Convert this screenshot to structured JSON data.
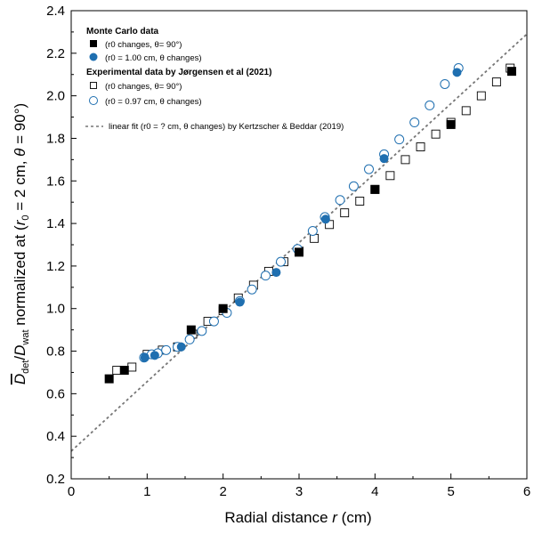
{
  "chart_data": {
    "type": "scatter",
    "xlabel_main": "Radial distance ",
    "xlabel_var": "r",
    "xlabel_unit": " (cm)",
    "ylabel_parts": {
      "d": "D",
      "det": "det",
      "slash": "/",
      "d2": "D",
      "wat": "wat",
      "text1": " normalized at (",
      "r": "r",
      "zero": "0",
      "text2": " = 2 cm, ",
      "theta": "θ",
      "text3": " = 90°)"
    },
    "xlim": [
      0,
      6
    ],
    "ylim": [
      0.2,
      2.4
    ],
    "x_ticks": [
      "0",
      "1",
      "2",
      "3",
      "4",
      "5",
      "6"
    ],
    "y_ticks": [
      "0.2",
      "0.4",
      "0.6",
      "0.8",
      "1.0",
      "1.2",
      "1.4",
      "1.6",
      "1.8",
      "2.0",
      "2.2",
      "2.4"
    ],
    "legend_position": "top-left",
    "legend": {
      "mc_header": "Monte Carlo data",
      "mc_series1": "(r0 changes, θ= 90°)",
      "mc_series2": "(r0 = 1.00 cm, θ changes)",
      "exp_header": "Experimental data by Jørgensen et al (2021)",
      "exp_series1": "(r0 changes, θ= 90°)",
      "exp_series2": "(r0 = 0.97 cm, θ changes)",
      "fit_label": "linear fit (r0 = ? cm, θ changes) by Kertzscher & Beddar (2019)"
    },
    "colors": {
      "black": "#000000",
      "blue": "#1f6fb0",
      "fit_line": "#777777"
    },
    "series": [
      {
        "name": "Monte Carlo (r0 changes, θ=90°)",
        "marker": "filled-square",
        "x": [
          0.5,
          0.7,
          1.58,
          2.0,
          3.0,
          4.0,
          5.0,
          5.8
        ],
        "y": [
          0.67,
          0.71,
          0.9,
          1.0,
          1.265,
          1.56,
          1.865,
          2.115
        ]
      },
      {
        "name": "Monte Carlo (r0 = 1.00 cm, θ changes)",
        "marker": "filled-circle",
        "x": [
          0.97,
          1.1,
          1.45,
          2.22,
          2.7,
          3.35,
          4.12,
          5.08
        ],
        "y": [
          0.77,
          0.78,
          0.82,
          1.03,
          1.17,
          1.42,
          1.705,
          2.11
        ]
      },
      {
        "name": "Experimental (r0 changes, θ=90°)",
        "marker": "open-square",
        "x": [
          0.6,
          0.8,
          1.0,
          1.2,
          1.4,
          1.6,
          1.8,
          2.0,
          2.2,
          2.4,
          2.6,
          2.8,
          3.0,
          3.2,
          3.4,
          3.6,
          3.8,
          4.0,
          4.2,
          4.4,
          4.6,
          4.8,
          5.0,
          5.2,
          5.4,
          5.6,
          5.78
        ],
        "y": [
          0.71,
          0.725,
          0.785,
          0.805,
          0.82,
          0.88,
          0.94,
          0.99,
          1.05,
          1.11,
          1.175,
          1.22,
          1.27,
          1.33,
          1.395,
          1.45,
          1.505,
          1.56,
          1.625,
          1.7,
          1.76,
          1.82,
          1.875,
          1.93,
          2.0,
          2.065,
          2.13
        ]
      },
      {
        "name": "Experimental (r0 = 0.97 cm, θ changes)",
        "marker": "open-circle",
        "x": [
          0.96,
          1.06,
          1.14,
          1.25,
          1.4,
          1.56,
          1.72,
          1.88,
          2.05,
          2.22,
          2.38,
          2.56,
          2.76,
          2.98,
          3.18,
          3.34,
          3.54,
          3.72,
          3.92,
          4.12,
          4.32,
          4.52,
          4.72,
          4.92,
          5.1
        ],
        "y": [
          0.77,
          0.785,
          0.79,
          0.805,
          0.82,
          0.855,
          0.895,
          0.94,
          0.98,
          1.035,
          1.09,
          1.155,
          1.22,
          1.28,
          1.365,
          1.43,
          1.51,
          1.575,
          1.655,
          1.725,
          1.795,
          1.875,
          1.955,
          2.055,
          2.13
        ]
      }
    ],
    "fit_line": {
      "x": [
        0,
        6
      ],
      "y": [
        0.33,
        2.29
      ]
    }
  }
}
